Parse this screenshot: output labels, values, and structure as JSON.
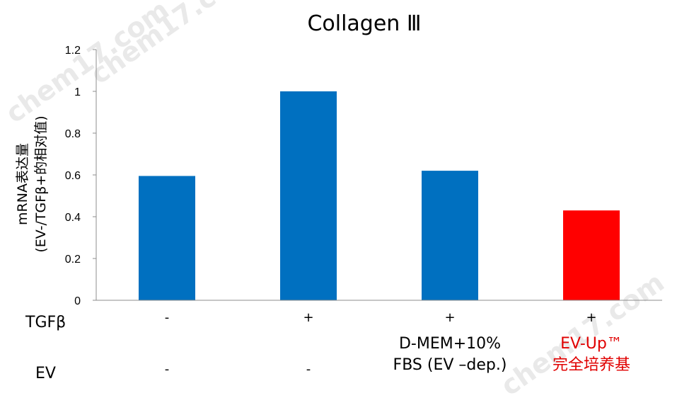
{
  "chart_data": {
    "type": "bar",
    "title": "Collagen Ⅲ",
    "ylabel_lines": [
      "mRNA表达量",
      "(EV-/TGFβ+的相对值)"
    ],
    "ylim": [
      0,
      1.2
    ],
    "yticks": [
      "0",
      "0.2",
      "0.4",
      "0.6",
      "0.8",
      "1",
      "1.2"
    ],
    "values": [
      0.595,
      1.0,
      0.62,
      0.43
    ],
    "bar_colors": [
      "#0070C0",
      "#0070C0",
      "#0070C0",
      "#FF0000"
    ],
    "grid": false,
    "rows": {
      "tgf_label": "TGFβ",
      "tgf_values": [
        "-",
        "+",
        "+",
        "+"
      ],
      "ev_label": "EV",
      "ev_values": [
        "-",
        "-",
        "D-MEM+10%\nFBS (EV –dep.)",
        "EV-Up™\n完全培养基"
      ],
      "ev_colors": [
        "#000000",
        "#000000",
        "#000000",
        "#E00000"
      ]
    }
  },
  "watermarks": [
    "chem17.com",
    "chem17.com",
    "chem17.com"
  ]
}
